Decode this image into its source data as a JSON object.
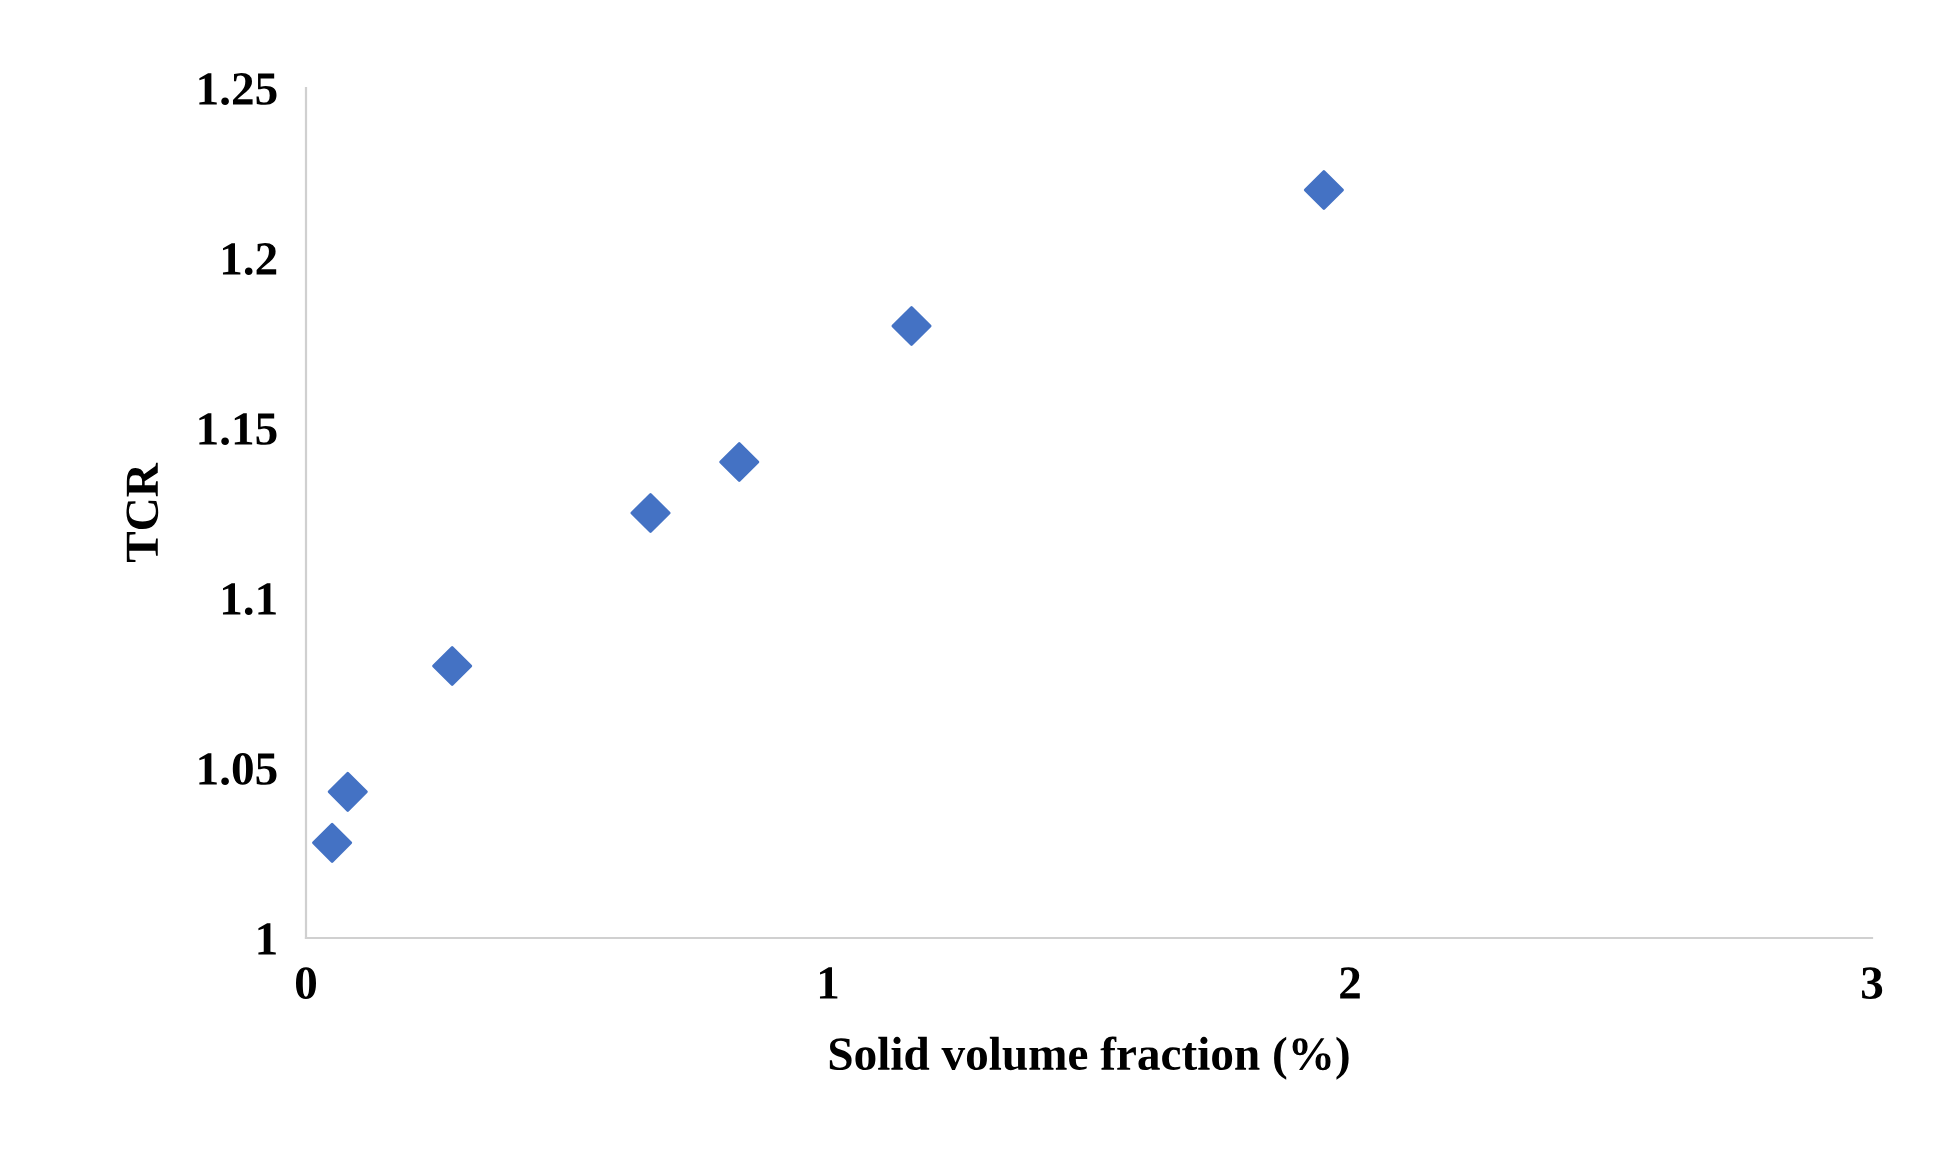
{
  "chart_data": {
    "type": "scatter",
    "xlabel": "Solid volume fraction (%)",
    "ylabel": "TCR",
    "x": [
      0.05,
      0.08,
      0.28,
      0.66,
      0.83,
      1.16,
      1.95
    ],
    "values": [
      1.028,
      1.043,
      1.08,
      1.125,
      1.14,
      1.18,
      1.22
    ],
    "color": "#4472c4",
    "marker": "diamond",
    "xlim": [
      0,
      3
    ],
    "xticks": [
      0,
      1,
      2,
      3
    ],
    "ylim": [
      1,
      1.25
    ],
    "yticks": [
      1,
      1.05,
      1.1,
      1.15,
      1.2,
      1.25
    ],
    "grid": false,
    "legend": false
  }
}
